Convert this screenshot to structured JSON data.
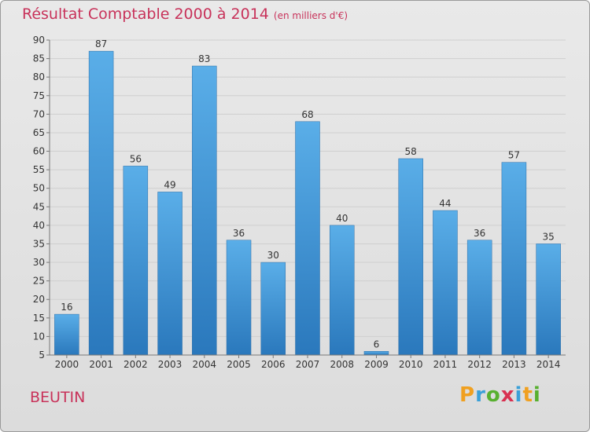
{
  "title": "Résultat Comptable 2000 à 2014",
  "unit_note": "(en milliers d'€)",
  "commune": "BEUTIN",
  "logo": {
    "letters": [
      "P",
      "r",
      "o",
      "x",
      "i",
      "t",
      "i"
    ],
    "colors": [
      "#f0a020",
      "#3aa0d8",
      "#58b030",
      "#d83050",
      "#3aa0d8",
      "#f0a020",
      "#58b030"
    ]
  },
  "colors": {
    "bar": "#3d95d6",
    "title": "#c8325a"
  },
  "chart_data": {
    "type": "bar",
    "title": "Résultat Comptable 2000 à 2014",
    "subtitle": "(en milliers d'€)",
    "categories": [
      "2000",
      "2001",
      "2002",
      "2003",
      "2004",
      "2005",
      "2006",
      "2007",
      "2008",
      "2009",
      "2010",
      "2011",
      "2012",
      "2013",
      "2014"
    ],
    "values": [
      16,
      87,
      56,
      49,
      83,
      36,
      30,
      68,
      40,
      6,
      58,
      44,
      36,
      57,
      35
    ],
    "ylim": [
      5,
      90
    ],
    "yticks": [
      5,
      10,
      15,
      20,
      25,
      30,
      35,
      40,
      45,
      50,
      55,
      60,
      65,
      70,
      75,
      80,
      85,
      90
    ],
    "grid": true,
    "xlabel": "",
    "ylabel": ""
  }
}
